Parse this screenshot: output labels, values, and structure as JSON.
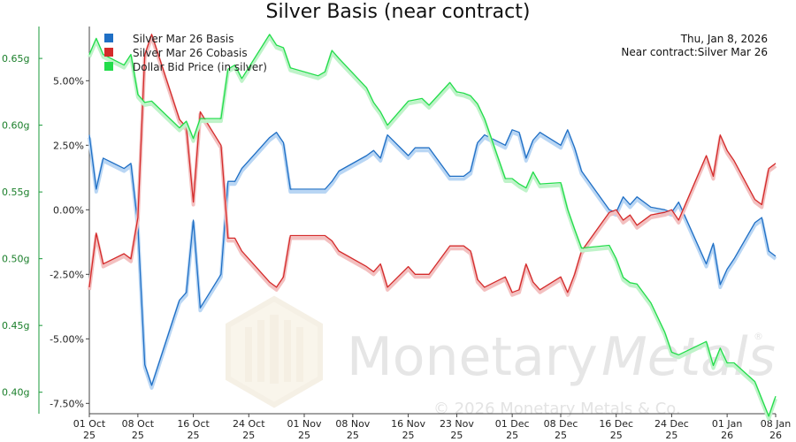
{
  "chart_data": {
    "type": "line",
    "title": "Silver Basis (near contract)",
    "info": {
      "date": "Thu, Jan 8, 2026",
      "near_contract": "Near contract:Silver Mar 26"
    },
    "watermark": {
      "brand_left": "Monetary",
      "brand_right": "Metals",
      "registered": "®",
      "copyright": "© 2026 Monetary Metals & Co."
    },
    "x_ticks": [
      {
        "label": "01 Oct",
        "sub": "25",
        "day": 0
      },
      {
        "label": "08 Oct",
        "sub": "25",
        "day": 7
      },
      {
        "label": "16 Oct",
        "sub": "25",
        "day": 15
      },
      {
        "label": "24 Oct",
        "sub": "25",
        "day": 23
      },
      {
        "label": "01 Nov",
        "sub": "25",
        "day": 31
      },
      {
        "label": "08 Nov",
        "sub": "25",
        "day": 38
      },
      {
        "label": "16 Nov",
        "sub": "25",
        "day": 46
      },
      {
        "label": "23 Nov",
        "sub": "25",
        "day": 53
      },
      {
        "label": "01 Dec",
        "sub": "25",
        "day": 61
      },
      {
        "label": "08 Dec",
        "sub": "25",
        "day": 68
      },
      {
        "label": "16 Dec",
        "sub": "25",
        "day": 76
      },
      {
        "label": "24 Dec",
        "sub": "25",
        "day": 84
      },
      {
        "label": "01 Jan",
        "sub": "26",
        "day": 92
      },
      {
        "label": "08 Jan",
        "sub": "26",
        "day": 99
      }
    ],
    "y_right": {
      "ticks": [
        "5.00%",
        "2.50%",
        "0.00%",
        "-2.50%",
        "-5.00%",
        "-7.50%"
      ],
      "tick_values": [
        5,
        2.5,
        0,
        -2.5,
        -5,
        -7.5
      ],
      "range": [
        -7.9,
        7.1
      ]
    },
    "y_left": {
      "ticks": [
        "0.65g",
        "0.60g",
        "0.55g",
        "0.50g",
        "0.45g",
        "0.40g"
      ],
      "tick_values": [
        0.65,
        0.6,
        0.55,
        0.5,
        0.45,
        0.4
      ],
      "range": [
        0.3839,
        0.6739
      ]
    },
    "grid": false,
    "legend_position": "top-left",
    "series": [
      {
        "name": "Silver Mar 26 Basis",
        "axis": "right",
        "color": "#1f6fc5",
        "shadow": "#b9d6f4",
        "x": [
          0,
          1,
          2,
          5,
          6,
          7,
          8,
          9,
          13,
          14,
          15,
          16,
          19,
          20,
          21,
          22,
          26,
          27,
          28,
          29,
          33,
          34,
          35,
          36,
          40,
          41,
          42,
          43,
          46,
          47,
          48,
          49,
          52,
          53,
          54,
          55,
          56,
          57,
          60,
          61,
          62,
          63,
          64,
          65,
          68,
          69,
          70,
          71,
          75,
          76,
          77,
          78,
          79,
          81,
          83,
          84,
          85,
          89,
          90,
          91,
          92,
          93,
          96,
          97,
          98,
          99
        ],
        "y": [
          2.9,
          0.8,
          2.0,
          1.6,
          1.8,
          -0.6,
          -6.0,
          -6.8,
          -3.5,
          -3.2,
          -0.4,
          -3.8,
          -2.5,
          1.1,
          1.1,
          1.6,
          2.8,
          3.0,
          2.6,
          0.8,
          0.8,
          0.8,
          1.1,
          1.5,
          2.1,
          2.3,
          2.0,
          2.9,
          2.1,
          2.4,
          2.4,
          2.4,
          1.3,
          1.3,
          1.3,
          1.5,
          2.6,
          2.9,
          2.5,
          3.1,
          3.0,
          2.0,
          2.7,
          3.0,
          2.5,
          3.1,
          2.4,
          1.5,
          0.0,
          -0.1,
          0.5,
          0.2,
          0.5,
          0.1,
          0.0,
          -0.1,
          0.3,
          -2.1,
          -1.3,
          -2.9,
          -2.3,
          -1.9,
          -0.5,
          -0.3,
          -1.6,
          -1.8
        ]
      },
      {
        "name": "Silver Mar 26 Cobasis",
        "axis": "right",
        "color": "#d42a2a",
        "shadow": "#f3c0c0",
        "x": [
          0,
          1,
          2,
          5,
          6,
          7,
          8,
          9,
          13,
          14,
          15,
          16,
          19,
          20,
          21,
          22,
          26,
          27,
          28,
          29,
          33,
          34,
          35,
          36,
          40,
          41,
          42,
          43,
          46,
          47,
          48,
          49,
          52,
          53,
          54,
          55,
          56,
          57,
          60,
          61,
          62,
          63,
          64,
          65,
          68,
          69,
          70,
          71,
          75,
          76,
          77,
          78,
          79,
          81,
          83,
          84,
          85,
          89,
          90,
          91,
          92,
          93,
          96,
          97,
          98,
          99
        ],
        "y": [
          -3.0,
          -0.9,
          -2.1,
          -1.7,
          -1.9,
          -0.3,
          6.0,
          6.8,
          3.5,
          3.2,
          0.3,
          3.8,
          2.5,
          -1.1,
          -1.1,
          -1.6,
          -2.8,
          -3.0,
          -2.6,
          -1.0,
          -1.0,
          -1.0,
          -1.2,
          -1.6,
          -2.2,
          -2.4,
          -2.1,
          -3.0,
          -2.2,
          -2.5,
          -2.5,
          -2.5,
          -1.4,
          -1.4,
          -1.4,
          -1.6,
          -2.7,
          -3.0,
          -2.6,
          -3.2,
          -3.1,
          -2.1,
          -2.8,
          -3.1,
          -2.6,
          -3.2,
          -2.5,
          -1.6,
          -0.1,
          0.0,
          -0.4,
          -0.2,
          -0.6,
          -0.2,
          -0.1,
          0.0,
          -0.4,
          2.1,
          1.3,
          2.9,
          2.3,
          1.9,
          0.4,
          0.2,
          1.6,
          1.8
        ]
      },
      {
        "name": "Dollar Bid Price (in silver)",
        "axis": "left",
        "color": "#22dd4a",
        "shadow": "#bff3c9",
        "x": [
          0,
          1,
          2,
          5,
          6,
          7,
          8,
          9,
          13,
          14,
          15,
          16,
          19,
          20,
          21,
          22,
          26,
          27,
          28,
          29,
          33,
          34,
          35,
          36,
          40,
          41,
          42,
          43,
          46,
          47,
          48,
          49,
          52,
          53,
          54,
          55,
          56,
          57,
          60,
          61,
          62,
          63,
          64,
          65,
          68,
          69,
          70,
          71,
          75,
          76,
          77,
          78,
          79,
          81,
          83,
          84,
          85,
          89,
          90,
          91,
          92,
          93,
          96,
          97,
          98,
          99
        ],
        "y": [
          0.653,
          0.665,
          0.653,
          0.645,
          0.653,
          0.623,
          0.617,
          0.618,
          0.598,
          0.603,
          0.59,
          0.605,
          0.605,
          0.642,
          0.645,
          0.635,
          0.668,
          0.66,
          0.658,
          0.643,
          0.637,
          0.64,
          0.656,
          0.65,
          0.628,
          0.617,
          0.61,
          0.6,
          0.618,
          0.619,
          0.62,
          0.615,
          0.632,
          0.625,
          0.624,
          0.622,
          0.616,
          0.605,
          0.56,
          0.56,
          0.556,
          0.553,
          0.565,
          0.556,
          0.557,
          0.537,
          0.522,
          0.508,
          0.51,
          0.5,
          0.486,
          0.482,
          0.481,
          0.467,
          0.445,
          0.43,
          0.428,
          0.438,
          0.42,
          0.433,
          0.422,
          0.422,
          0.408,
          0.395,
          0.382,
          0.397
        ]
      }
    ]
  }
}
